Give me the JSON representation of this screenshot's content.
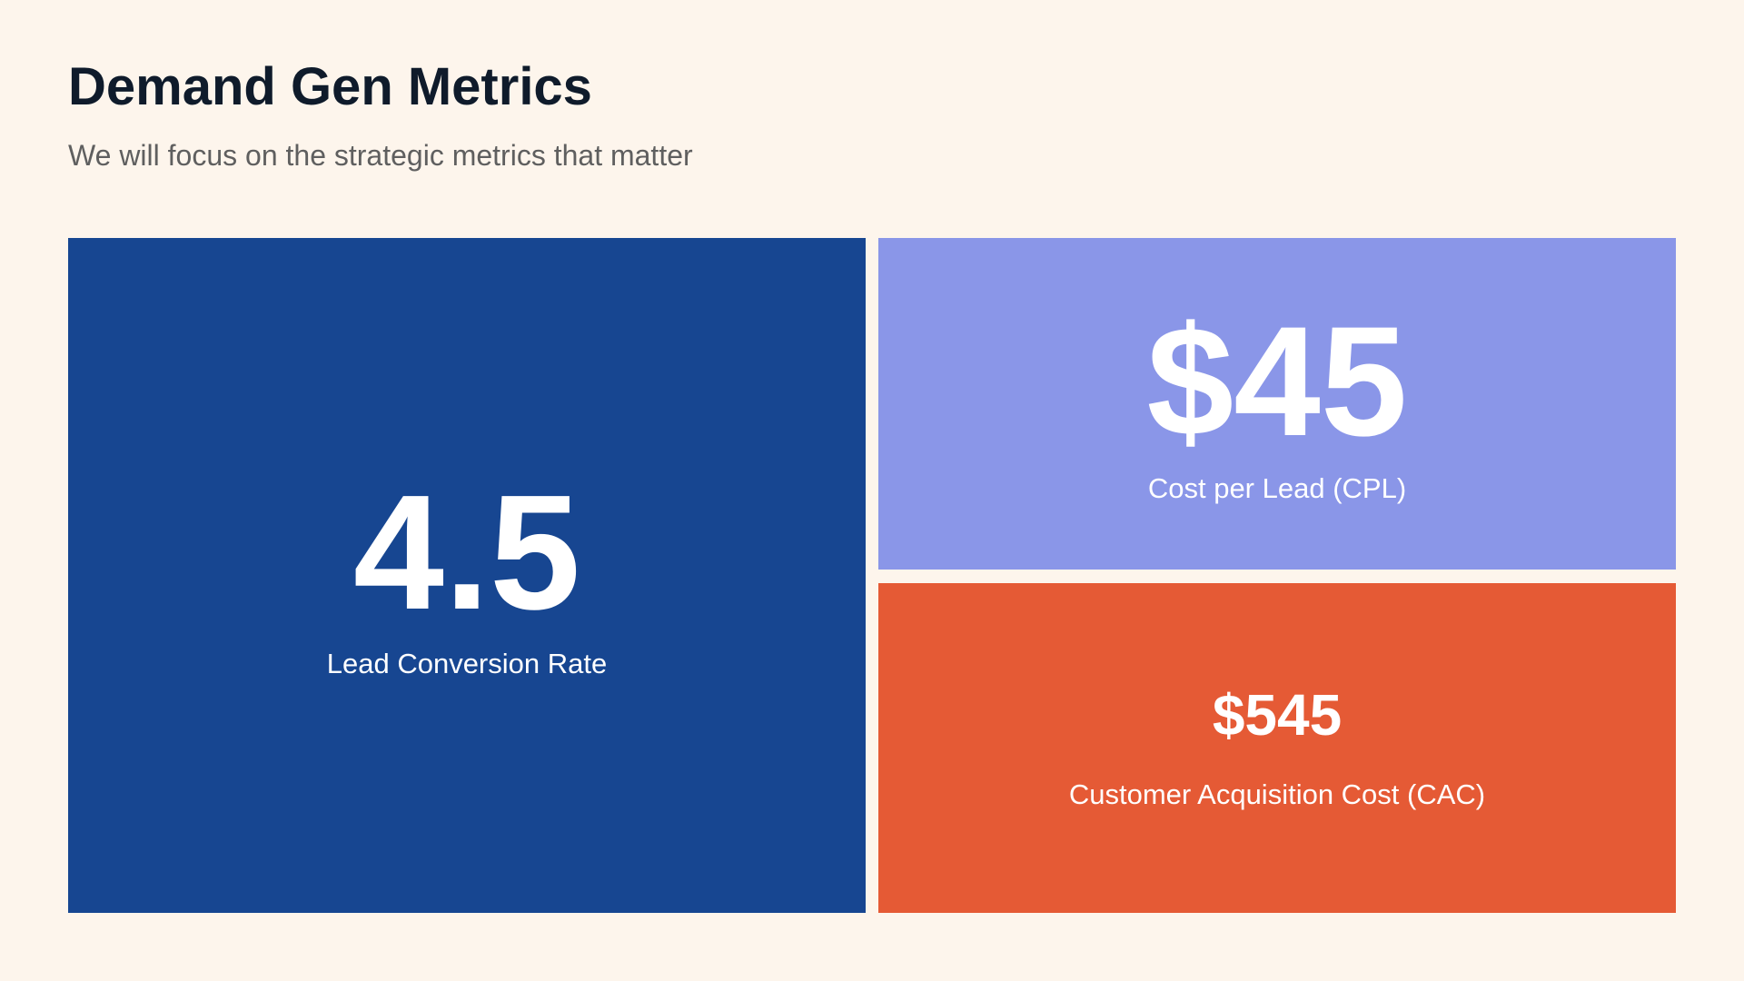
{
  "header": {
    "title": "Demand Gen Metrics",
    "subtitle": "We will focus on the strategic metrics that matter"
  },
  "metrics": [
    {
      "value": "4.5",
      "label": "Lead Conversion Rate"
    },
    {
      "value": "$45",
      "label": "Cost per Lead (CPL)"
    },
    {
      "value": "$545",
      "label": "Customer Acquisition Cost (CAC)"
    }
  ]
}
